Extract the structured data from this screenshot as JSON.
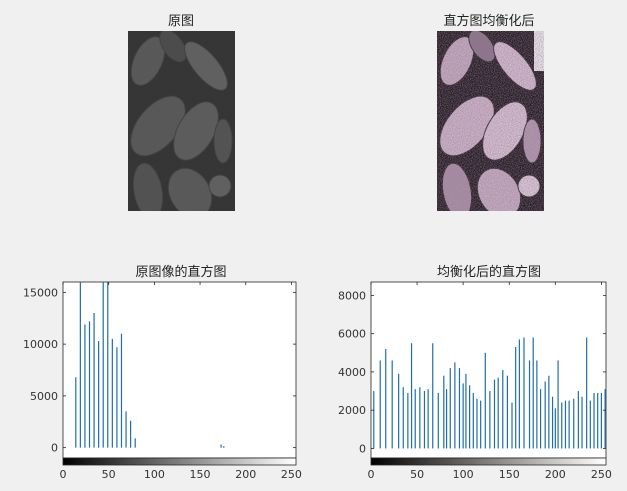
{
  "panels": {
    "orig_image_title": "原图",
    "eq_image_title": "直方图均衡化后"
  },
  "colors": {
    "bar": "#1f6ea8",
    "axis": "#262626",
    "background": "#f0f0f0",
    "plot_bg": "#ffffff"
  },
  "chart_data": [
    {
      "type": "bar",
      "title": "原图像的直方图",
      "xlabel": "",
      "ylabel": "",
      "xlim": [
        0,
        255
      ],
      "ylim": [
        -1000,
        16000
      ],
      "xticks": [
        0,
        50,
        100,
        150,
        200,
        250
      ],
      "yticks": [
        0,
        5000,
        10000,
        15000
      ],
      "colorbar": "grayscale",
      "x": [
        14,
        19,
        24,
        29,
        34,
        39,
        44,
        49,
        54,
        59,
        64,
        69,
        74,
        79,
        173,
        176
      ],
      "values": [
        6800,
        16000,
        11900,
        12200,
        13000,
        10300,
        16000,
        16000,
        10500,
        9700,
        11000,
        3500,
        2600,
        900,
        300,
        150
      ]
    },
    {
      "type": "bar",
      "title": "均衡化后的直方图",
      "xlabel": "",
      "ylabel": "",
      "xlim": [
        0,
        255
      ],
      "ylim": [
        -500,
        8700
      ],
      "xticks": [
        0,
        50,
        100,
        150,
        200,
        250
      ],
      "yticks": [
        0,
        2000,
        4000,
        6000,
        8000
      ],
      "colorbar": "grayscale",
      "x": [
        3,
        10,
        16,
        23,
        30,
        35,
        40,
        44,
        48,
        53,
        58,
        62,
        67,
        73,
        79,
        82,
        86,
        91,
        96,
        100,
        103,
        107,
        111,
        115,
        119,
        124,
        129,
        134,
        138,
        143,
        148,
        153,
        157,
        161,
        166,
        172,
        176,
        180,
        184,
        189,
        193,
        197,
        200,
        203,
        207,
        211,
        215,
        220,
        225,
        229,
        234,
        238,
        242,
        246,
        250,
        254
      ],
      "values": [
        3000,
        4600,
        5200,
        4600,
        3900,
        3200,
        2900,
        5500,
        3100,
        3200,
        3000,
        3100,
        5500,
        2900,
        3800,
        3100,
        4200,
        4500,
        4200,
        3400,
        3900,
        3300,
        2900,
        2600,
        2500,
        5000,
        3000,
        3600,
        3700,
        4100,
        3800,
        2400,
        5300,
        5700,
        5800,
        4600,
        5800,
        4600,
        3100,
        3500,
        3800,
        2700,
        2100,
        4600,
        2400,
        2500,
        2500,
        2600,
        3000,
        2700,
        5800,
        2500,
        2900,
        2900,
        2900,
        3100
      ]
    }
  ]
}
